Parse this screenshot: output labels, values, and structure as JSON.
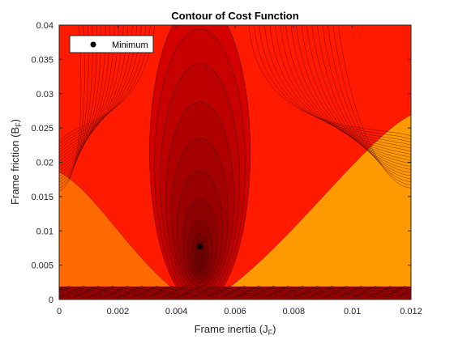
{
  "chart_data": {
    "type": "contour",
    "title": "Contour of Cost Function",
    "xlabel_main": "Frame inertia (J",
    "xlabel_sub": "F",
    "xlabel_close": ")",
    "ylabel_main": "Frame friction (B",
    "ylabel_sub": "F",
    "ylabel_close": ")",
    "xlim": [
      0,
      0.012
    ],
    "ylim": [
      0,
      0.04
    ],
    "x_ticks": [
      0,
      0.002,
      0.004,
      0.006,
      0.008,
      0.01,
      0.012
    ],
    "x_tick_labels": [
      "0",
      "0.002",
      "0.004",
      "0.006",
      "0.008",
      "0.01",
      "0.012"
    ],
    "y_ticks": [
      0,
      0.005,
      0.01,
      0.015,
      0.02,
      0.025,
      0.03,
      0.035,
      0.04
    ],
    "y_tick_labels": [
      "0",
      "0.005",
      "0.01",
      "0.015",
      "0.02",
      "0.025",
      "0.03",
      "0.035",
      "0.04"
    ],
    "minimum": {
      "x": 0.0048,
      "y": 0.0077
    },
    "legend": {
      "label": "Minimum",
      "location": "top-left",
      "marker": "filled-circle",
      "marker_color": "#000000"
    },
    "colors": {
      "low": "#6b0000",
      "mid": "#d40000",
      "high": "#ff1a00",
      "edge": "#ff9900",
      "contour_line": "#3a0000"
    }
  }
}
